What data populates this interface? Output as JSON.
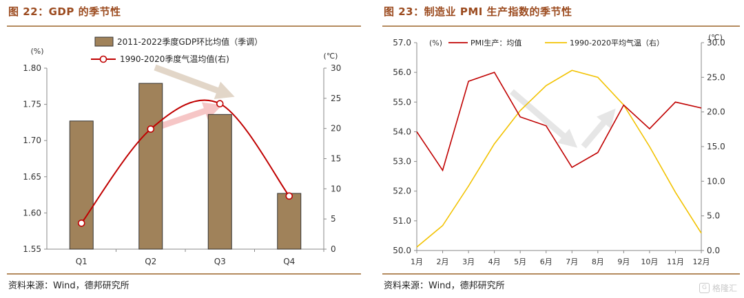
{
  "left": {
    "title": "图 22：GDP 的季节性",
    "source": "资料来源：Wind，德邦研究所",
    "chart_data": {
      "type": "bar",
      "categories": [
        "Q1",
        "Q2",
        "Q3",
        "Q4"
      ],
      "left_unit": "(%)",
      "right_unit": "(℃)",
      "ylim": [
        1.55,
        1.8
      ],
      "yticks": [
        "1.55",
        "1.60",
        "1.65",
        "1.70",
        "1.75",
        "1.80"
      ],
      "y2lim": [
        0,
        30
      ],
      "y2ticks": [
        "0",
        "5",
        "10",
        "15",
        "20",
        "25",
        "30"
      ],
      "legend_position": "top",
      "series": [
        {
          "name": "2011-2022季度GDP环比均值（季调）",
          "type": "bar",
          "axis": "left",
          "values": [
            1.727,
            1.779,
            1.736,
            1.627
          ],
          "color": "#a0825a"
        },
        {
          "name": "1990-2020季度气温均值(右)",
          "type": "line",
          "axis": "right",
          "values": [
            4.3,
            19.9,
            24.1,
            8.8
          ],
          "color": "#c00000"
        }
      ]
    }
  },
  "right": {
    "title": "图 23：制造业 PMI 生产指数的季节性",
    "source": "资料来源：Wind，德邦研究所",
    "chart_data": {
      "type": "line",
      "categories": [
        "1月",
        "2月",
        "3月",
        "4月",
        "5月",
        "6月",
        "7月",
        "8月",
        "9月",
        "10月",
        "11月",
        "12月"
      ],
      "left_unit": "(%)",
      "right_unit": "(℃)",
      "ylim": [
        50.0,
        57.0
      ],
      "yticks": [
        "50.0",
        "51.0",
        "52.0",
        "53.0",
        "54.0",
        "55.0",
        "56.0",
        "57.0"
      ],
      "y2lim": [
        0,
        30
      ],
      "y2ticks": [
        "0.0",
        "5.0",
        "10.0",
        "15.0",
        "20.0",
        "25.0",
        "30.0"
      ],
      "legend_position": "top",
      "series": [
        {
          "name": "PMI生产：均值",
          "axis": "left",
          "values": [
            54.0,
            52.7,
            55.7,
            56.0,
            54.5,
            54.2,
            52.8,
            53.3,
            54.9,
            54.1,
            55.0,
            54.8
          ],
          "color": "#c00000"
        },
        {
          "name": "1990-2020平均气温（右）",
          "axis": "right",
          "values": [
            0.5,
            3.6,
            9.3,
            15.4,
            20.2,
            23.8,
            26.0,
            25.0,
            21.0,
            15.0,
            8.4,
            2.5
          ],
          "color": "#f2c200"
        }
      ]
    }
  },
  "watermark": {
    "text": "格隆汇",
    "icon": "gelonghui-logo-icon"
  }
}
